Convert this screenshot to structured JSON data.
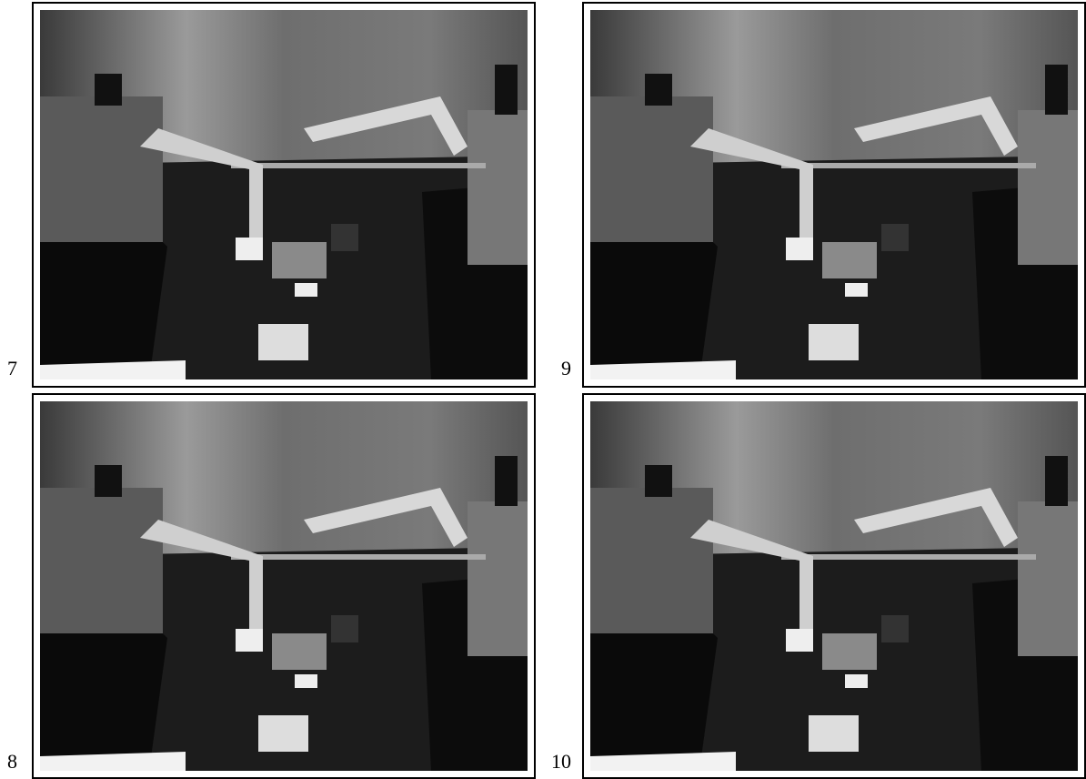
{
  "panels": [
    {
      "label": "7"
    },
    {
      "label": "9"
    },
    {
      "label": "8"
    },
    {
      "label": "10"
    }
  ]
}
